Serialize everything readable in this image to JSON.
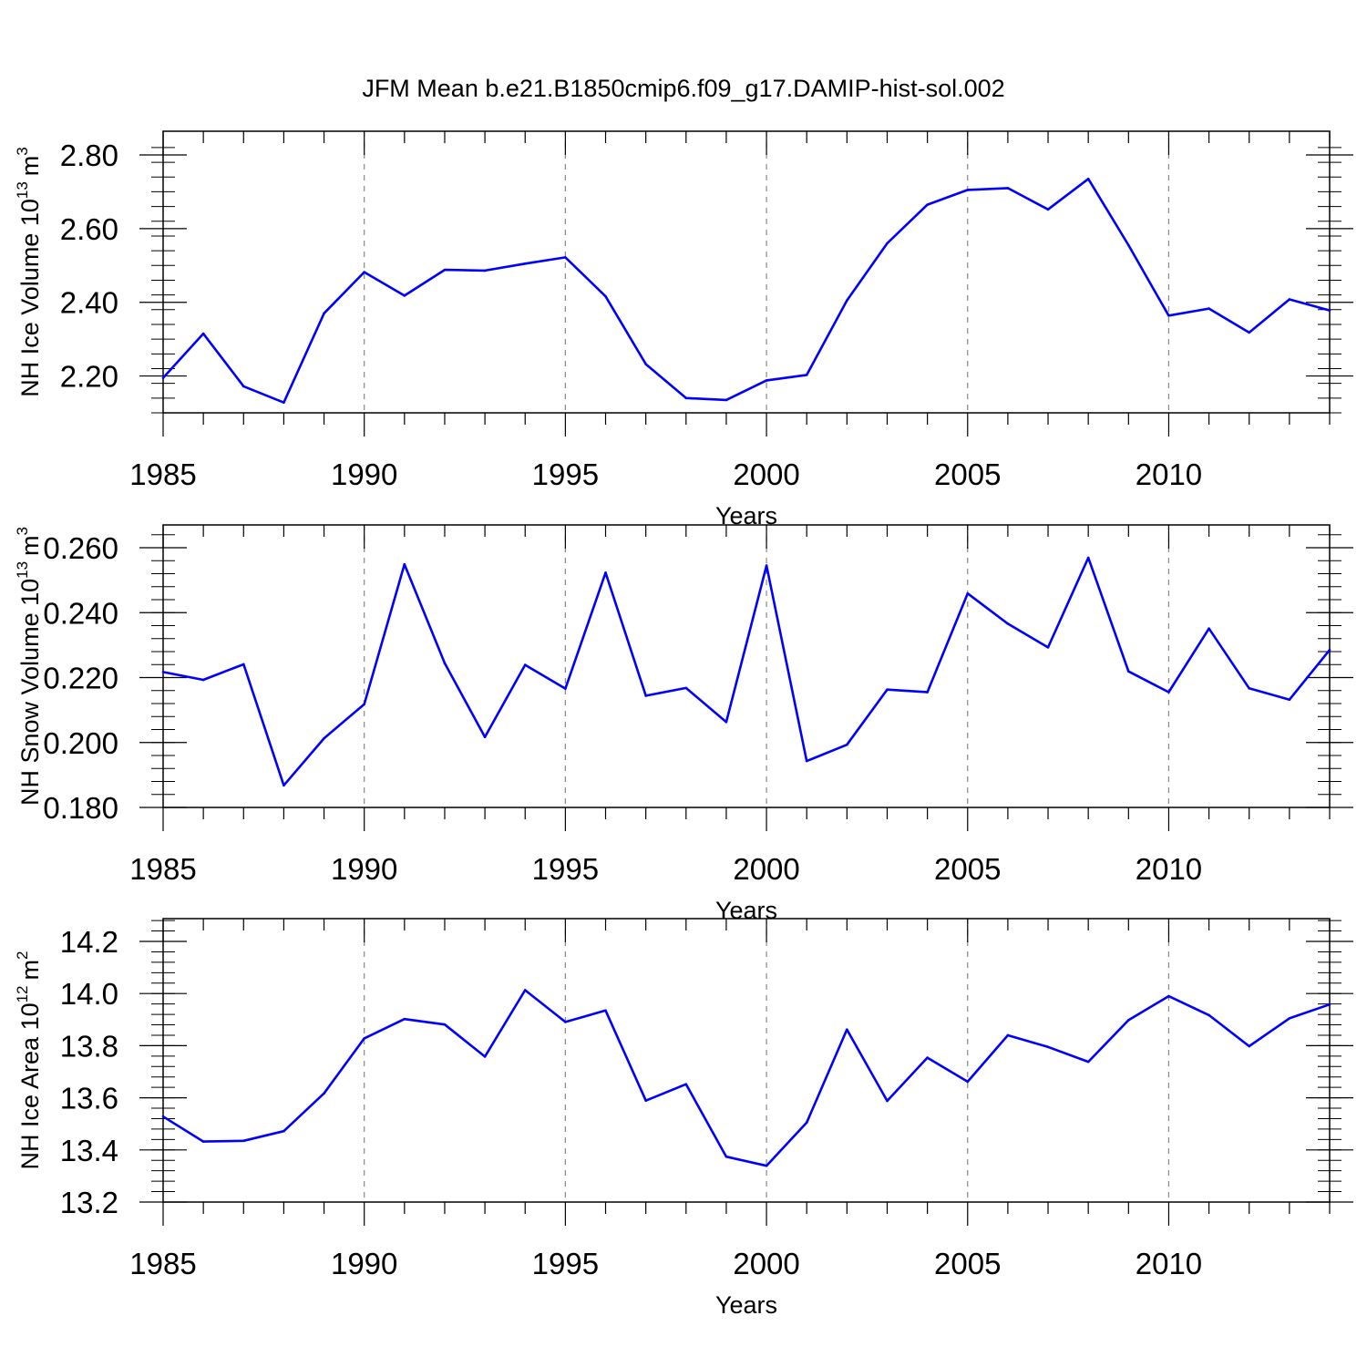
{
  "title": "JFM Mean b.e21.B1850cmip6.f09_g17.DAMIP-hist-sol.002",
  "chart_data": [
    {
      "type": "line",
      "ylabel": "NH Ice Volume 10",
      "ylabel_exp": "13",
      "ylabel_unit": "m",
      "ylabel_unit_exp": "3",
      "xlabel": "Years",
      "xlim": [
        1985,
        2014
      ],
      "ylim": [
        2.1,
        2.84
      ],
      "yticks": [
        2.2,
        2.4,
        2.6,
        2.8
      ],
      "yticklabels": [
        "2.20",
        "2.40",
        "2.60",
        "2.80"
      ],
      "yminor": 0.04,
      "xticks": [
        1985,
        1990,
        1995,
        2000,
        2005,
        2010
      ],
      "xticklabels": [
        "1985",
        "1990",
        "1995",
        "2000",
        "2005",
        "2010"
      ],
      "line_color": "#0000ff",
      "x": [
        1985,
        1986,
        1987,
        1988,
        1989,
        1990,
        1991,
        1992,
        1993,
        1994,
        1995,
        1996,
        1997,
        1998,
        1999,
        2000,
        2001,
        2002,
        2003,
        2004,
        2005,
        2006,
        2007,
        2008,
        2009,
        2010,
        2011,
        2012,
        2013,
        2014
      ],
      "values": [
        2.195,
        2.315,
        2.172,
        2.128,
        2.37,
        2.482,
        2.418,
        2.488,
        2.486,
        2.505,
        2.522,
        2.416,
        2.232,
        2.14,
        2.135,
        2.188,
        2.203,
        2.405,
        2.56,
        2.665,
        2.705,
        2.71,
        2.652,
        2.735,
        2.555,
        2.364,
        2.383,
        2.318,
        2.408,
        2.378
      ]
    },
    {
      "type": "line",
      "ylabel": "NH Snow Volume 10",
      "ylabel_exp": "13",
      "ylabel_unit": "m",
      "ylabel_unit_exp": "3",
      "xlabel": "Years",
      "xlim": [
        1985,
        2014
      ],
      "ylim": [
        0.18,
        0.267
      ],
      "yticks": [
        0.18,
        0.2,
        0.22,
        0.24,
        0.26
      ],
      "yticklabels": [
        "0.180",
        "0.200",
        "0.220",
        "0.240",
        "0.260"
      ],
      "yminor": 0.004,
      "xticks": [
        1985,
        1990,
        1995,
        2000,
        2005,
        2010
      ],
      "xticklabels": [
        "1985",
        "1990",
        "1995",
        "2000",
        "2005",
        "2010"
      ],
      "line_color": "#0000ff",
      "x": [
        1985,
        1986,
        1987,
        1988,
        1989,
        1990,
        1991,
        1992,
        1993,
        1994,
        1995,
        1996,
        1997,
        1998,
        1999,
        2000,
        2001,
        2002,
        2003,
        2004,
        2005,
        2006,
        2007,
        2008,
        2009,
        2010,
        2011,
        2012,
        2013,
        2014
      ],
      "values": [
        0.2217,
        0.2193,
        0.2241,
        0.1868,
        0.2013,
        0.2118,
        0.2549,
        0.2244,
        0.2017,
        0.2239,
        0.2166,
        0.2523,
        0.2144,
        0.2168,
        0.2063,
        0.2545,
        0.1943,
        0.1993,
        0.2163,
        0.2155,
        0.2459,
        0.2366,
        0.2293,
        0.2569,
        0.2219,
        0.2155,
        0.2351,
        0.2167,
        0.2132,
        0.2285
      ]
    },
    {
      "type": "line",
      "ylabel": "NH Ice Area 10",
      "ylabel_exp": "12",
      "ylabel_unit": "m",
      "ylabel_unit_exp": "2",
      "xlabel": "Years",
      "xlim": [
        1985,
        2014
      ],
      "ylim": [
        13.2,
        14.29
      ],
      "yticks": [
        13.2,
        13.4,
        13.6,
        13.8,
        14.0,
        14.2
      ],
      "yticklabels": [
        "13.2",
        "13.4",
        "13.6",
        "13.8",
        "14.0",
        "14.2"
      ],
      "yminor": 0.04,
      "xticks": [
        1985,
        1990,
        1995,
        2000,
        2005,
        2010
      ],
      "xticklabels": [
        "1985",
        "1990",
        "1995",
        "2000",
        "2005",
        "2010"
      ],
      "line_color": "#0000ff",
      "x": [
        1985,
        1986,
        1987,
        1988,
        1989,
        1990,
        1991,
        1992,
        1993,
        1994,
        1995,
        1996,
        1997,
        1998,
        1999,
        2000,
        2001,
        2002,
        2003,
        2004,
        2005,
        2006,
        2007,
        2008,
        2009,
        2010,
        2011,
        2012,
        2013,
        2014
      ],
      "values": [
        13.528,
        13.432,
        13.435,
        13.472,
        13.617,
        13.828,
        13.902,
        13.881,
        13.758,
        14.013,
        13.891,
        13.935,
        13.589,
        13.652,
        13.374,
        13.339,
        13.505,
        13.862,
        13.588,
        13.754,
        13.662,
        13.84,
        13.795,
        13.738,
        13.898,
        13.99,
        13.917,
        13.798,
        13.905,
        13.958
      ]
    }
  ]
}
